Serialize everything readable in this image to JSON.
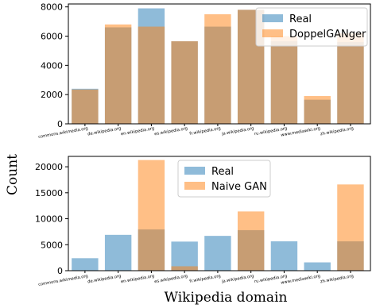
{
  "figure": {
    "ylabel": "Count",
    "xlabel": "Wikipedia domain"
  },
  "chart_data": [
    {
      "type": "bar",
      "categories": [
        "commons.wikimedia.org",
        "de.wikipedia.org",
        "en.wikipedia.org",
        "es.wikipedia.org",
        "fr.wikipedia.org",
        "ja.wikipedia.org",
        "ru.wikipedia.org",
        "www.mediawiki.org",
        "zh.wikipedia.org"
      ],
      "series": [
        {
          "name": "Real",
          "color": "#1f77b4",
          "values": [
            2400,
            6600,
            7900,
            5650,
            6650,
            7800,
            5650,
            1650,
            5600
          ]
        },
        {
          "name": "DoppelGANger",
          "color": "#ff7f0e",
          "values": [
            2350,
            6800,
            6650,
            5650,
            7500,
            7800,
            6000,
            1900,
            6200
          ]
        }
      ],
      "ylim": [
        0,
        8200
      ],
      "yticks": [
        0,
        2000,
        4000,
        6000,
        8000
      ],
      "ytick_labels": [
        "0",
        "2000",
        "4000",
        "6000",
        "8000"
      ],
      "legend_position": "upper right",
      "alpha": 0.5
    },
    {
      "type": "bar",
      "categories": [
        "commons.wikimedia.org",
        "de.wikipedia.org",
        "en.wikipedia.org",
        "es.wikipedia.org",
        "fr.wikipedia.org",
        "ja.wikipedia.org",
        "ru.wikipedia.org",
        "www.mediawiki.org",
        "zh.wikipedia.org"
      ],
      "series": [
        {
          "name": "Real",
          "color": "#1f77b4",
          "values": [
            2400,
            6900,
            7950,
            5600,
            6700,
            7800,
            5650,
            1600,
            5650
          ]
        },
        {
          "name": "Naive GAN",
          "color": "#ff7f0e",
          "values": [
            0,
            0,
            21300,
            850,
            0,
            11400,
            0,
            0,
            16600
          ]
        }
      ],
      "ylim": [
        0,
        22000
      ],
      "yticks": [
        0,
        5000,
        10000,
        15000,
        20000
      ],
      "ytick_labels": [
        "0",
        "5000",
        "10000",
        "15000",
        "20000"
      ],
      "legend_position": "upper left",
      "alpha": 0.5
    }
  ]
}
